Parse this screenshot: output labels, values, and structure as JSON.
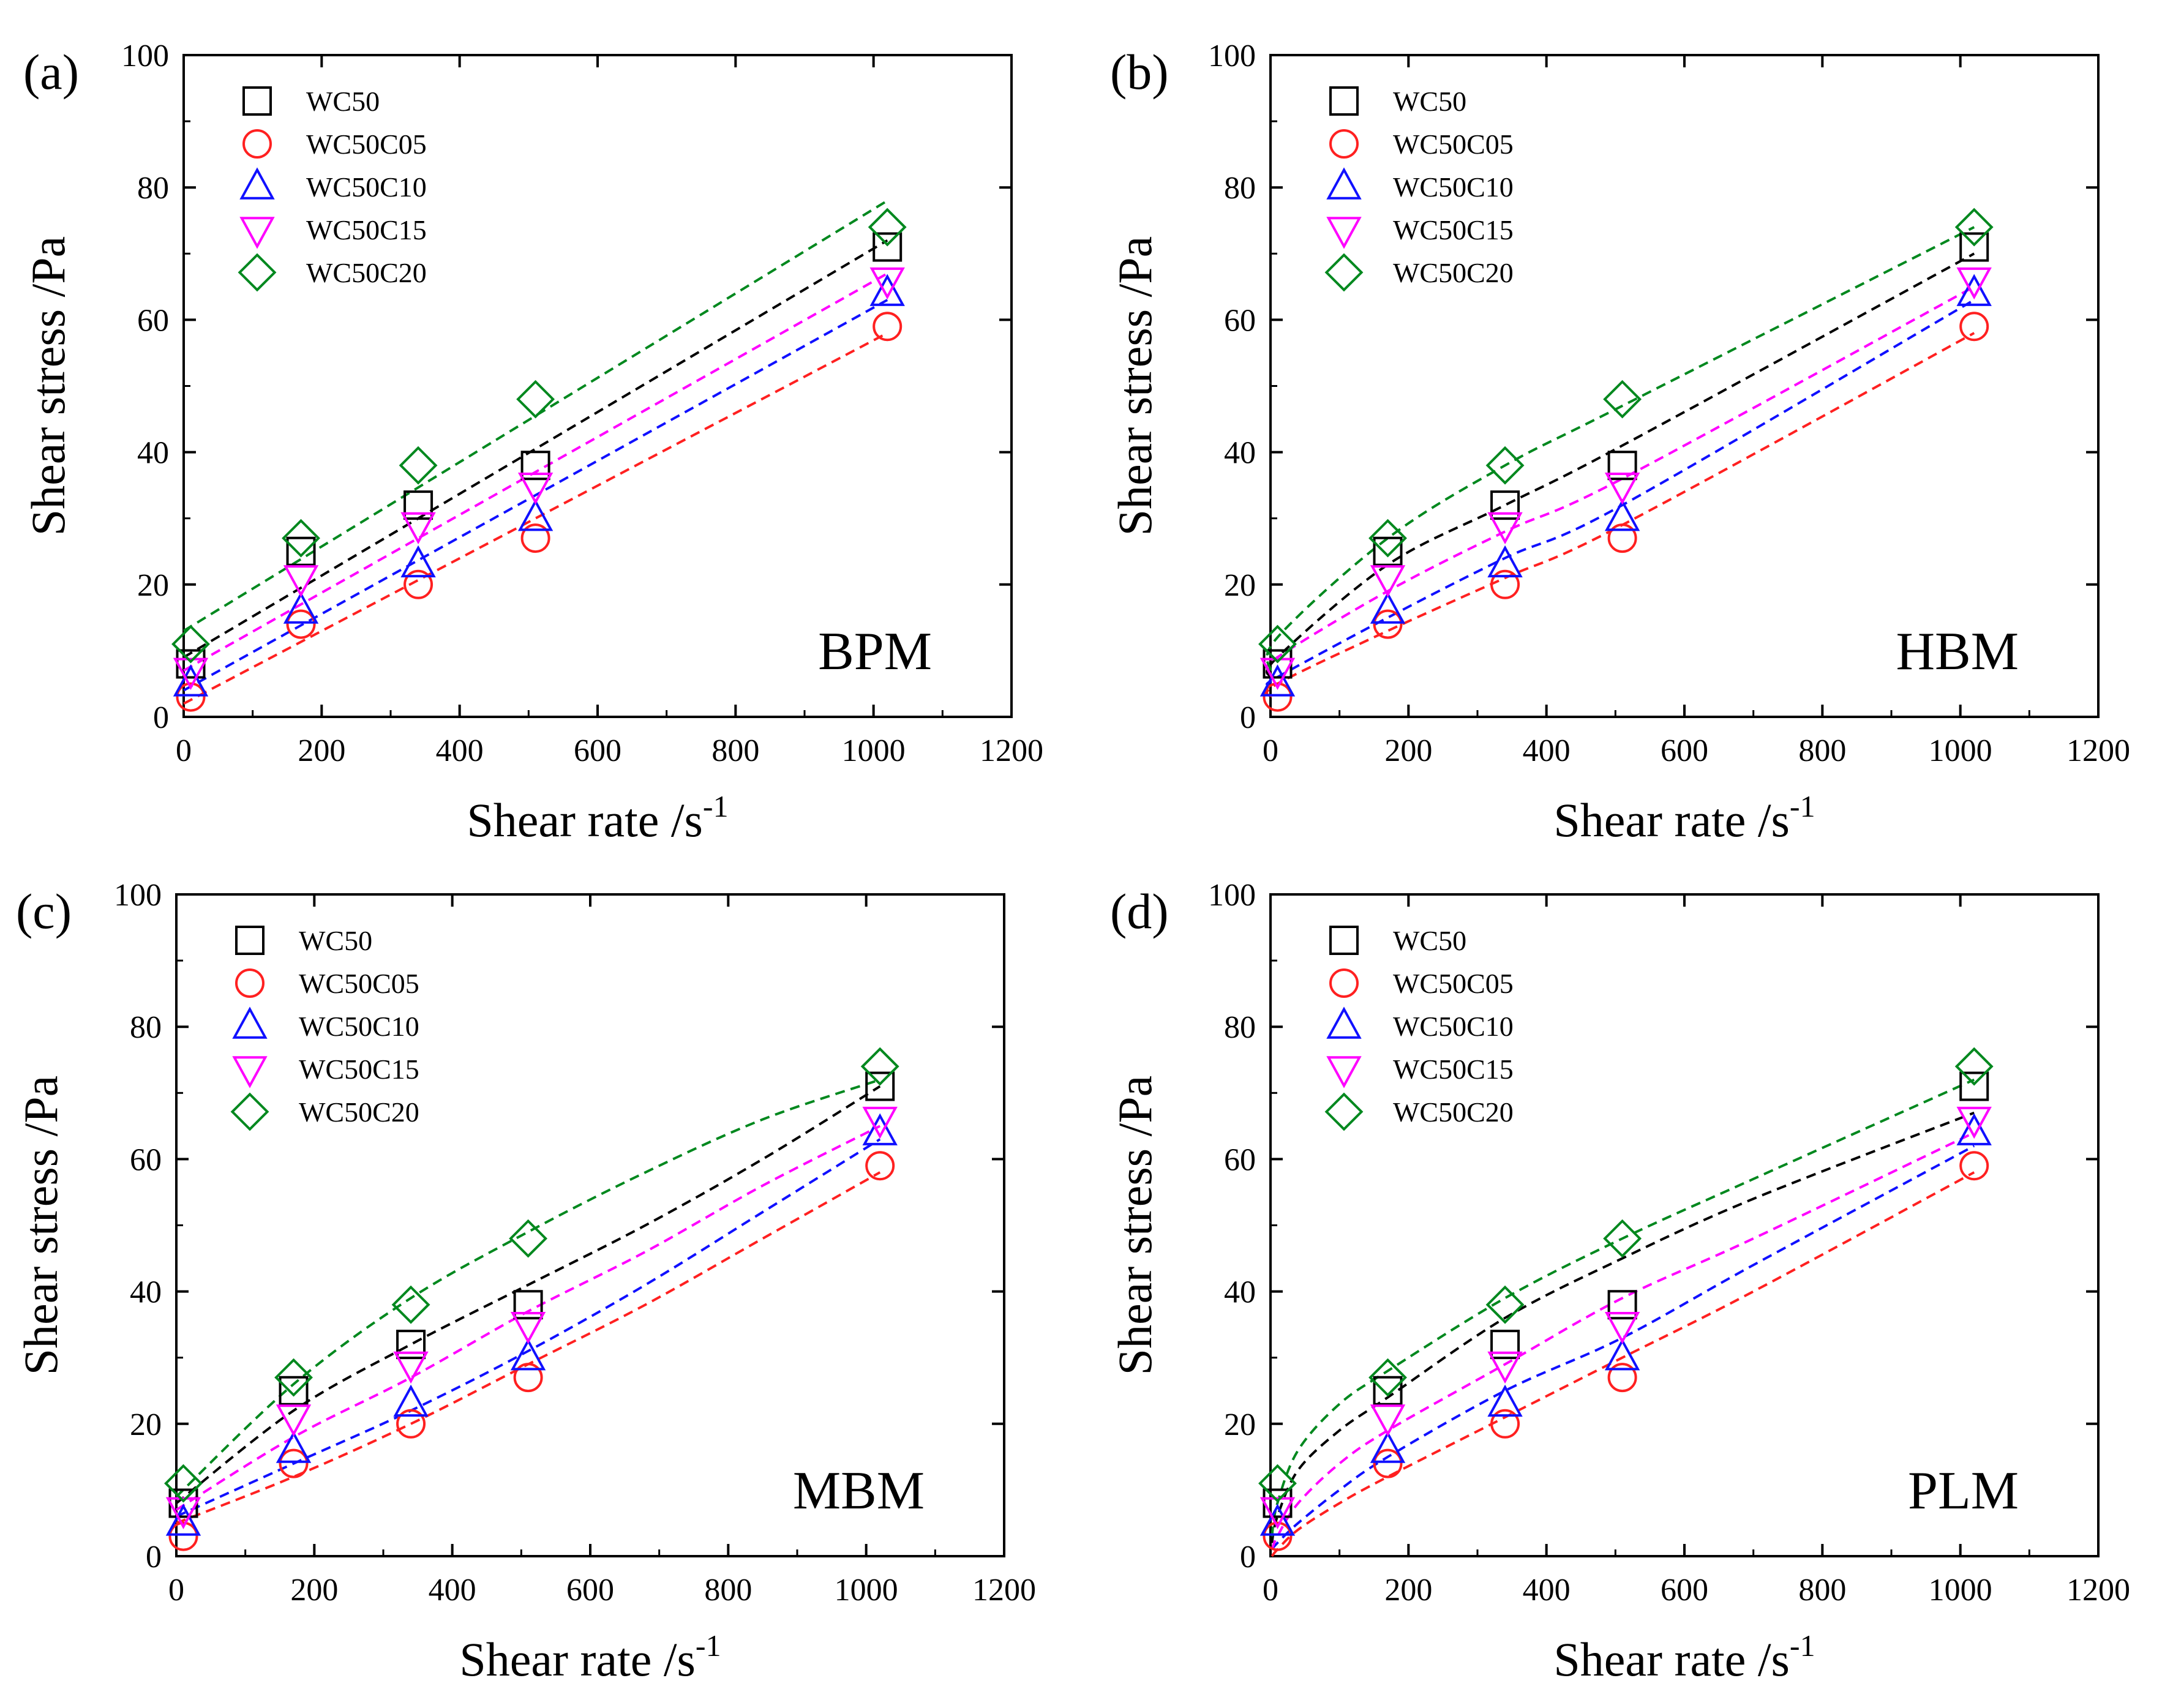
{
  "chart_data": [
    {
      "type": "scatter",
      "panel": "(a)",
      "method_label": "BPM",
      "xlabel": "Shear rate /s",
      "xlabel_superscript": "-1",
      "ylabel": "Shear stress /Pa",
      "xlim": [
        0,
        1200
      ],
      "ylim": [
        0,
        100
      ],
      "xticks": [
        "0",
        "200",
        "400",
        "600",
        "800",
        "1000",
        "1200"
      ],
      "yticks": [
        "0",
        "20",
        "40",
        "60",
        "80",
        "100"
      ],
      "legend": "top-left",
      "x": [
        10.2,
        170,
        340,
        510,
        1020
      ],
      "series": [
        {
          "name": "WC50",
          "marker": "square",
          "color": "#000000",
          "values": [
            8,
            25,
            32,
            38,
            71
          ],
          "fit": [
            [
              0,
              9
            ],
            [
              1020,
              72
            ]
          ]
        },
        {
          "name": "WC50C05",
          "marker": "circle",
          "color": "#ff2020",
          "values": [
            3,
            14,
            20,
            27,
            59
          ],
          "fit": [
            [
              0,
              2
            ],
            [
              1020,
              58
            ]
          ]
        },
        {
          "name": "WC50C10",
          "marker": "triangle-up",
          "color": "#1010ff",
          "values": [
            5,
            16,
            23,
            30,
            64
          ],
          "fit": [
            [
              0,
              4
            ],
            [
              1020,
              63
            ]
          ]
        },
        {
          "name": "WC50C15",
          "marker": "triangle-down",
          "color": "#ff00ff",
          "values": [
            7,
            21,
            29,
            35,
            66
          ],
          "fit": [
            [
              0,
              7
            ],
            [
              1020,
              67
            ]
          ]
        },
        {
          "name": "WC50C20",
          "marker": "diamond",
          "color": "#00881e",
          "values": [
            11,
            27,
            38,
            48,
            74
          ],
          "fit": [
            [
              0,
              13
            ],
            [
              1020,
              78
            ]
          ]
        }
      ]
    },
    {
      "type": "scatter",
      "panel": "(b)",
      "method_label": "HBM",
      "xlabel": "Shear rate /s",
      "xlabel_superscript": "-1",
      "ylabel": "Shear stress /Pa",
      "xlim": [
        0,
        1200
      ],
      "ylim": [
        0,
        100
      ],
      "xticks": [
        "0",
        "200",
        "400",
        "600",
        "800",
        "1000",
        "1200"
      ],
      "yticks": [
        "0",
        "20",
        "40",
        "60",
        "80",
        "100"
      ],
      "legend": "top-left",
      "x": [
        10.2,
        170,
        340,
        510,
        1020
      ],
      "series": [
        {
          "name": "WC50",
          "marker": "square",
          "color": "#000000",
          "values": [
            8,
            25,
            32,
            38,
            71
          ],
          "fit": [
            [
              0,
              6
            ],
            [
              10,
              9
            ],
            [
              170,
              23
            ],
            [
              340,
              32
            ],
            [
              510,
              41
            ],
            [
              1020,
              70
            ]
          ]
        },
        {
          "name": "WC50C05",
          "marker": "circle",
          "color": "#ff2020",
          "values": [
            3,
            14,
            20,
            27,
            59
          ],
          "fit": [
            [
              0,
              3
            ],
            [
              10,
              5
            ],
            [
              170,
              13
            ],
            [
              340,
              21
            ],
            [
              510,
              29
            ],
            [
              1020,
              58
            ]
          ]
        },
        {
          "name": "WC50C10",
          "marker": "triangle-up",
          "color": "#1010ff",
          "values": [
            5,
            16,
            23,
            30,
            64
          ],
          "fit": [
            [
              0,
              5
            ],
            [
              10,
              6
            ],
            [
              170,
              15
            ],
            [
              340,
              24
            ],
            [
              510,
              32
            ],
            [
              1020,
              63
            ]
          ]
        },
        {
          "name": "WC50C15",
          "marker": "triangle-down",
          "color": "#ff00ff",
          "values": [
            7,
            21,
            29,
            35,
            66
          ],
          "fit": [
            [
              0,
              7
            ],
            [
              10,
              9
            ],
            [
              170,
              19
            ],
            [
              340,
              28
            ],
            [
              510,
              36
            ],
            [
              1020,
              65
            ]
          ]
        },
        {
          "name": "WC50C20",
          "marker": "diamond",
          "color": "#00881e",
          "values": [
            11,
            27,
            38,
            48,
            74
          ],
          "fit": [
            [
              0,
              7
            ],
            [
              10,
              12
            ],
            [
              170,
              27
            ],
            [
              340,
              38
            ],
            [
              510,
              47
            ],
            [
              1020,
              74
            ]
          ]
        }
      ]
    },
    {
      "type": "scatter",
      "panel": "(c)",
      "method_label": "MBM",
      "xlabel": "Shear rate /s",
      "xlabel_superscript": "-1",
      "ylabel": "Shear stress /Pa",
      "xlim": [
        0,
        1200
      ],
      "ylim": [
        0,
        100
      ],
      "xticks": [
        "0",
        "200",
        "400",
        "600",
        "800",
        "1000",
        "1200"
      ],
      "yticks": [
        "0",
        "20",
        "40",
        "60",
        "80",
        "100"
      ],
      "legend": "top-left",
      "x": [
        10.2,
        170,
        340,
        510,
        1020
      ],
      "series": [
        {
          "name": "WC50",
          "marker": "square",
          "color": "#000000",
          "values": [
            8,
            25,
            32,
            38,
            71
          ],
          "fit": [
            [
              0,
              8
            ],
            [
              170,
              22
            ],
            [
              340,
              32
            ],
            [
              510,
              41
            ],
            [
              680,
              50
            ],
            [
              850,
              60
            ],
            [
              1020,
              71
            ]
          ]
        },
        {
          "name": "WC50C05",
          "marker": "circle",
          "color": "#ff2020",
          "values": [
            3,
            14,
            20,
            27,
            59
          ],
          "fit": [
            [
              0,
              5
            ],
            [
              170,
              12
            ],
            [
              340,
              20
            ],
            [
              510,
              29
            ],
            [
              680,
              38
            ],
            [
              850,
              48
            ],
            [
              1020,
              58
            ]
          ]
        },
        {
          "name": "WC50C10",
          "marker": "triangle-up",
          "color": "#1010ff",
          "values": [
            5,
            16,
            23,
            30,
            64
          ],
          "fit": [
            [
              0,
              6
            ],
            [
              170,
              14
            ],
            [
              340,
              22
            ],
            [
              510,
              31
            ],
            [
              680,
              41
            ],
            [
              850,
              52
            ],
            [
              1020,
              63
            ]
          ]
        },
        {
          "name": "WC50C15",
          "marker": "triangle-down",
          "color": "#ff00ff",
          "values": [
            7,
            21,
            29,
            35,
            66
          ],
          "fit": [
            [
              0,
              7
            ],
            [
              170,
              18
            ],
            [
              340,
              27
            ],
            [
              510,
              37
            ],
            [
              680,
              46
            ],
            [
              850,
              56
            ],
            [
              1020,
              65
            ]
          ]
        },
        {
          "name": "WC50C20",
          "marker": "diamond",
          "color": "#00881e",
          "values": [
            11,
            27,
            38,
            48,
            74
          ],
          "fit": [
            [
              0,
              9
            ],
            [
              170,
              26
            ],
            [
              340,
              39
            ],
            [
              510,
              49
            ],
            [
              680,
              58
            ],
            [
              850,
              66
            ],
            [
              1020,
              72
            ]
          ]
        }
      ]
    },
    {
      "type": "scatter",
      "panel": "(d)",
      "method_label": "PLM",
      "xlabel": "Shear rate /s",
      "xlabel_superscript": "-1",
      "ylabel": "Shear stress /Pa",
      "xlim": [
        0,
        1200
      ],
      "ylim": [
        0,
        100
      ],
      "xticks": [
        "0",
        "200",
        "400",
        "600",
        "800",
        "1000",
        "1200"
      ],
      "yticks": [
        "0",
        "20",
        "40",
        "60",
        "80",
        "100"
      ],
      "legend": "top-left",
      "x": [
        10.2,
        170,
        340,
        510,
        1020
      ],
      "series": [
        {
          "name": "WC50",
          "marker": "square",
          "color": "#000000",
          "values": [
            8,
            25,
            32,
            38,
            71
          ],
          "fit": [
            [
              2,
              2
            ],
            [
              10,
              6
            ],
            [
              40,
              13
            ],
            [
              100,
              19
            ],
            [
              170,
              24
            ],
            [
              340,
              36
            ],
            [
              510,
              45
            ],
            [
              700,
              54
            ],
            [
              1020,
              67
            ]
          ]
        },
        {
          "name": "WC50C05",
          "marker": "circle",
          "color": "#ff2020",
          "values": [
            3,
            14,
            20,
            27,
            59
          ],
          "fit": [
            [
              2,
              0
            ],
            [
              10,
              1
            ],
            [
              40,
              4
            ],
            [
              100,
              8
            ],
            [
              170,
              12
            ],
            [
              340,
              21
            ],
            [
              510,
              30
            ],
            [
              700,
              40
            ],
            [
              1020,
              58
            ]
          ]
        },
        {
          "name": "WC50C10",
          "marker": "triangle-up",
          "color": "#1010ff",
          "values": [
            5,
            16,
            23,
            30,
            64
          ],
          "fit": [
            [
              2,
              1
            ],
            [
              10,
              2
            ],
            [
              40,
              5
            ],
            [
              100,
              10
            ],
            [
              170,
              15
            ],
            [
              340,
              25
            ],
            [
              510,
              33
            ],
            [
              700,
              44
            ],
            [
              1020,
              62
            ]
          ]
        },
        {
          "name": "WC50C15",
          "marker": "triangle-down",
          "color": "#ff00ff",
          "values": [
            7,
            21,
            29,
            35,
            66
          ],
          "fit": [
            [
              2,
              1
            ],
            [
              10,
              3
            ],
            [
              40,
              8
            ],
            [
              100,
              14
            ],
            [
              170,
              19
            ],
            [
              340,
              29
            ],
            [
              510,
              39
            ],
            [
              700,
              48
            ],
            [
              1020,
              64
            ]
          ]
        },
        {
          "name": "WC50C20",
          "marker": "diamond",
          "color": "#00881e",
          "values": [
            11,
            27,
            38,
            48,
            74
          ],
          "fit": [
            [
              2,
              3
            ],
            [
              10,
              8
            ],
            [
              40,
              16
            ],
            [
              100,
              23
            ],
            [
              170,
              28
            ],
            [
              340,
              39
            ],
            [
              510,
              48
            ],
            [
              700,
              57
            ],
            [
              1020,
              72
            ]
          ]
        }
      ]
    }
  ]
}
